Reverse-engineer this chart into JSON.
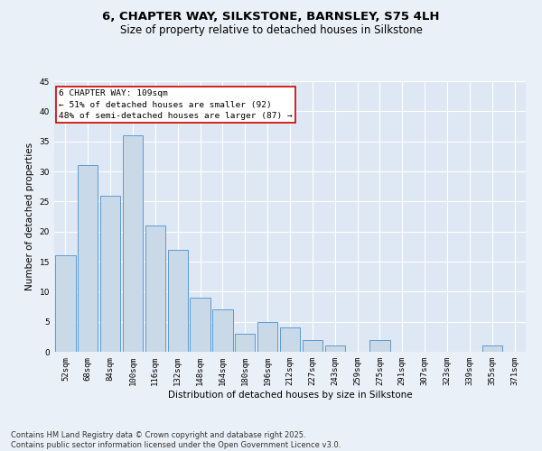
{
  "title1": "6, CHAPTER WAY, SILKSTONE, BARNSLEY, S75 4LH",
  "title2": "Size of property relative to detached houses in Silkstone",
  "xlabel": "Distribution of detached houses by size in Silkstone",
  "ylabel": "Number of detached properties",
  "categories": [
    "52sqm",
    "68sqm",
    "84sqm",
    "100sqm",
    "116sqm",
    "132sqm",
    "148sqm",
    "164sqm",
    "180sqm",
    "196sqm",
    "212sqm",
    "227sqm",
    "243sqm",
    "259sqm",
    "275sqm",
    "291sqm",
    "307sqm",
    "323sqm",
    "339sqm",
    "355sqm",
    "371sqm"
  ],
  "values": [
    16,
    31,
    26,
    36,
    21,
    17,
    9,
    7,
    3,
    5,
    4,
    2,
    1,
    0,
    2,
    0,
    0,
    0,
    0,
    1,
    0
  ],
  "bar_color": "#c9d9e8",
  "bar_edge_color": "#5b9bd5",
  "annotation_line1": "6 CHAPTER WAY: 109sqm",
  "annotation_line2": "← 51% of detached houses are smaller (92)",
  "annotation_line3": "48% of semi-detached houses are larger (87) →",
  "annotation_box_color": "#ffffff",
  "annotation_box_edge": "#cc0000",
  "ylim": [
    0,
    45
  ],
  "yticks": [
    0,
    5,
    10,
    15,
    20,
    25,
    30,
    35,
    40,
    45
  ],
  "bg_color": "#eaf0f8",
  "plot_bg_color": "#dde8f4",
  "grid_color": "#ffffff",
  "footer_text": "Contains HM Land Registry data © Crown copyright and database right 2025.\nContains public sector information licensed under the Open Government Licence v3.0.",
  "title_fontsize": 9.5,
  "subtitle_fontsize": 8.5,
  "axis_label_fontsize": 7.5,
  "tick_fontsize": 6.5,
  "annotation_fontsize": 6.8,
  "footer_fontsize": 6.0
}
